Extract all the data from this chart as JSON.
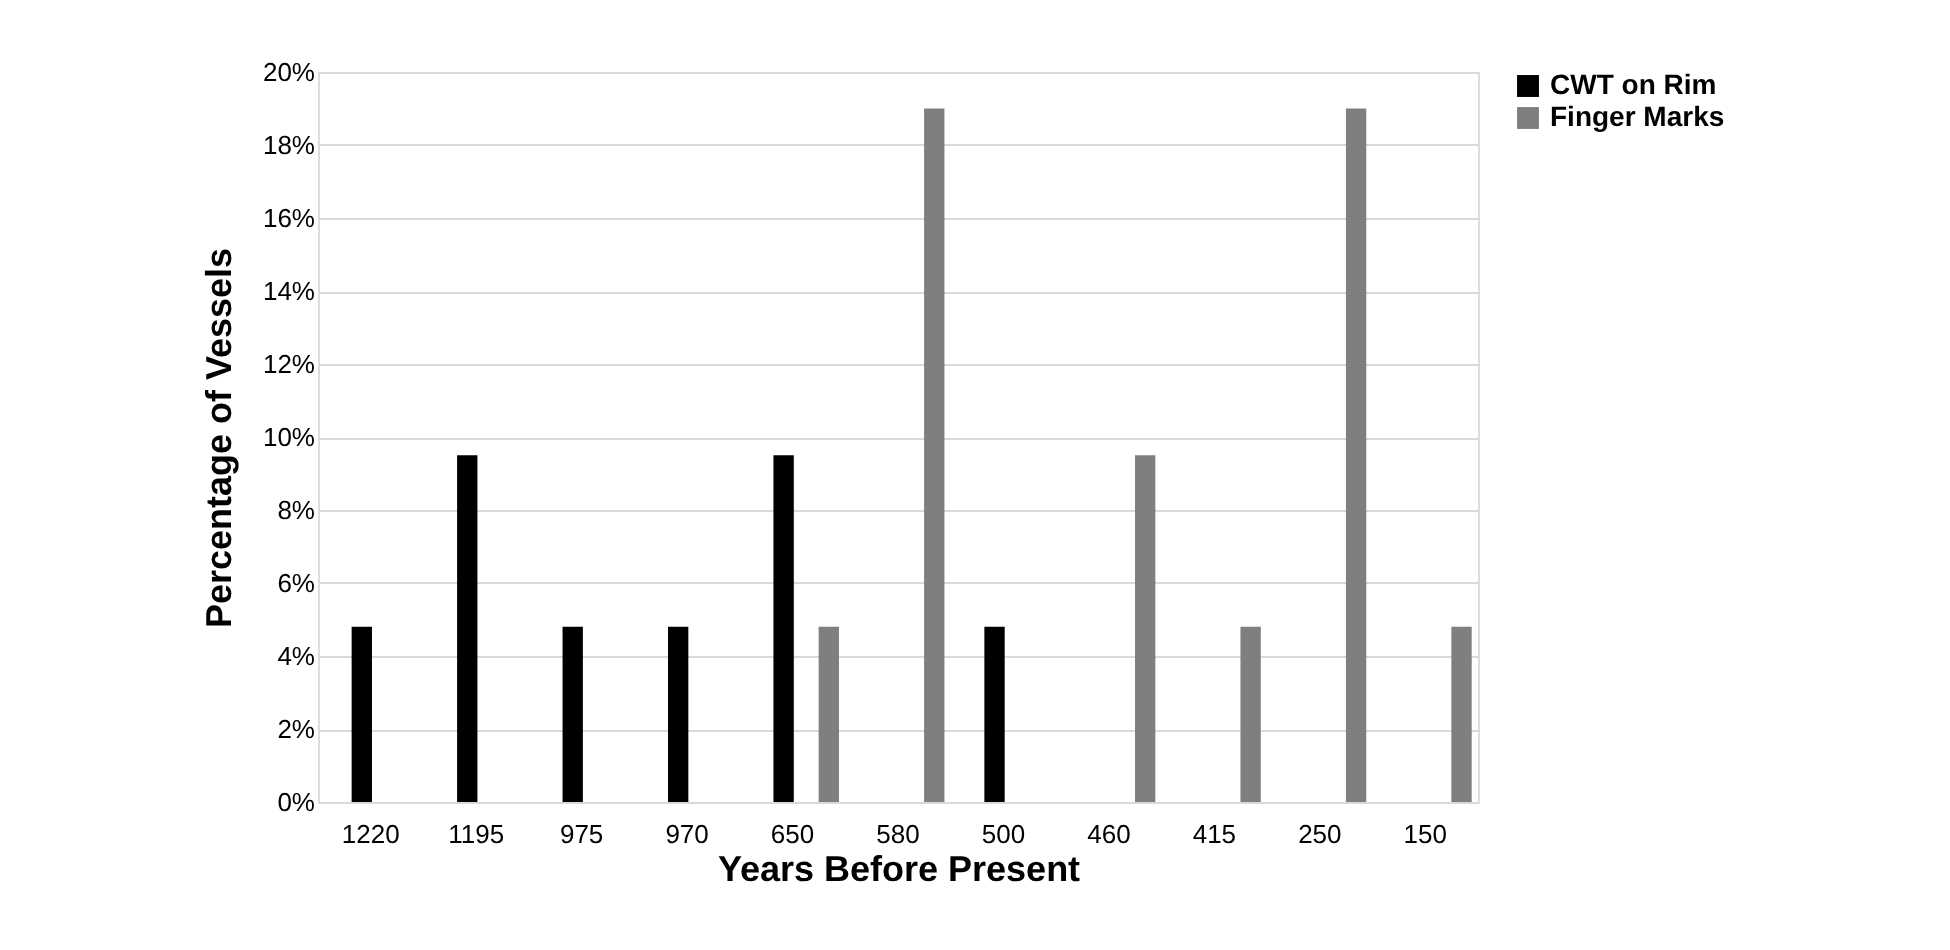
{
  "chart_data": {
    "type": "bar",
    "xlabel": "Years Before Present",
    "ylabel": "Percentage of Vessels",
    "categories": [
      "1220",
      "1195",
      "975",
      "970",
      "650",
      "580",
      "500",
      "460",
      "415",
      "250",
      "150"
    ],
    "series": [
      {
        "name": "CWT on Rim",
        "color": "#000000",
        "values": [
          4.8,
          9.5,
          4.8,
          4.8,
          9.5,
          0,
          4.8,
          0,
          0,
          0,
          0
        ]
      },
      {
        "name": "Finger Marks",
        "color": "#7f7f7f",
        "values": [
          0,
          0,
          0,
          0,
          4.8,
          19,
          0,
          9.5,
          4.8,
          19,
          4.8
        ]
      }
    ],
    "ylim": [
      0,
      20
    ],
    "yticks": [
      {
        "value": 0,
        "label": "0%"
      },
      {
        "value": 2,
        "label": "2%"
      },
      {
        "value": 4,
        "label": "4%"
      },
      {
        "value": 6,
        "label": "6%"
      },
      {
        "value": 8,
        "label": "8%"
      },
      {
        "value": 10,
        "label": "10%"
      },
      {
        "value": 12,
        "label": "12%"
      },
      {
        "value": 14,
        "label": "14%"
      },
      {
        "value": 16,
        "label": "16%"
      },
      {
        "value": 18,
        "label": "18%"
      },
      {
        "value": 20,
        "label": "20%"
      }
    ],
    "grid": "y",
    "legend": "right"
  }
}
